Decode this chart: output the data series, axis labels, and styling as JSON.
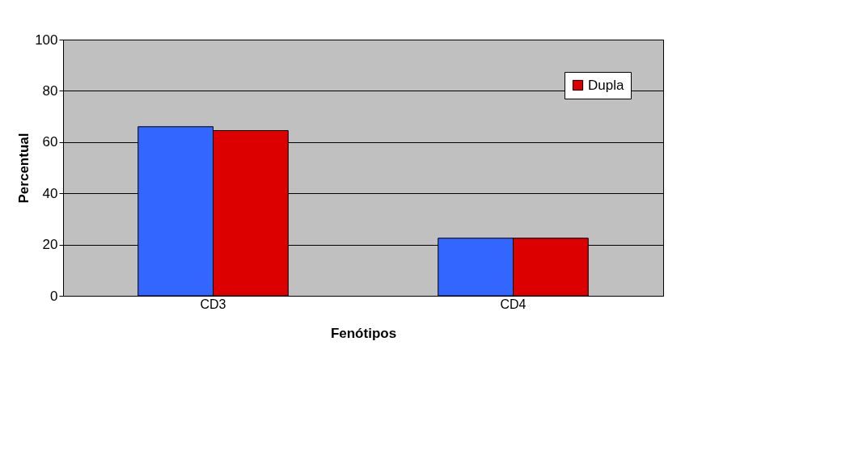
{
  "chart_data": {
    "type": "bar",
    "xlabel": "Fenótipos",
    "ylabel": "Percentual",
    "categories": [
      "CD3",
      "CD4"
    ],
    "series": [
      {
        "color": "#3366ff",
        "values": [
          66,
          22.5
        ]
      },
      {
        "name": "Dupla",
        "color": "#dd0000",
        "values": [
          64.5,
          22.5
        ]
      }
    ],
    "ylim": [
      0,
      100
    ],
    "yticks": [
      0,
      20,
      40,
      60,
      80,
      100
    ],
    "grid": "y",
    "legend": "top right"
  }
}
